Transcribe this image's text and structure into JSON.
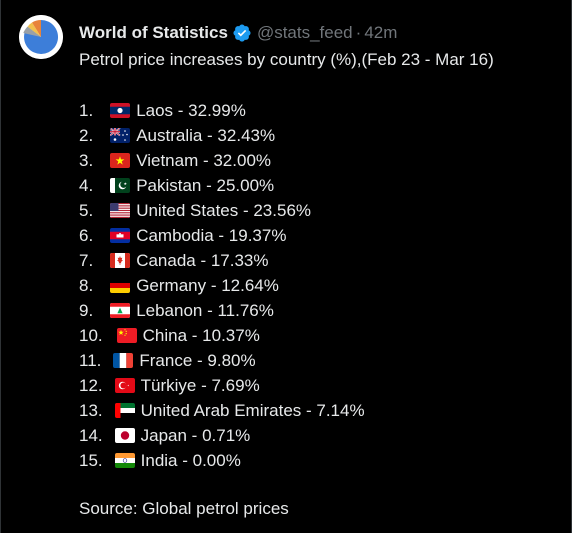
{
  "post": {
    "display_name": "World of Statistics",
    "handle": "@stats_feed",
    "separator": "·",
    "time": "42m",
    "verified_icon": "verified-badge-icon",
    "avatar_icon": "pie-chart-avatar",
    "intro": "Petrol price increases by country (%),(Feb 23 - Mar 16)",
    "source": "Source: Global petrol prices"
  },
  "list": [
    {
      "num": "1.",
      "country": "Laos - 32.99%",
      "flag": "laos-flag-icon"
    },
    {
      "num": "2.",
      "country": "Australia - 32.43%",
      "flag": "australia-flag-icon"
    },
    {
      "num": "3.",
      "country": "Vietnam - 32.00%",
      "flag": "vietnam-flag-icon"
    },
    {
      "num": "4.",
      "country": "Pakistan - 25.00%",
      "flag": "pakistan-flag-icon"
    },
    {
      "num": "5.",
      "country": "United States - 23.56%",
      "flag": "united-states-flag-icon"
    },
    {
      "num": "6.",
      "country": "Cambodia - 19.37%",
      "flag": "cambodia-flag-icon"
    },
    {
      "num": "7.",
      "country": "Canada - 17.33%",
      "flag": "canada-flag-icon"
    },
    {
      "num": "8.",
      "country": "Germany - 12.64%",
      "flag": "germany-flag-icon"
    },
    {
      "num": "9.",
      "country": "Lebanon - 11.76%",
      "flag": "lebanon-flag-icon"
    },
    {
      "num": "10.",
      "country": "China - 10.37%",
      "flag": "china-flag-icon"
    },
    {
      "num": "11.",
      "country": "France - 9.80%",
      "flag": "france-flag-icon"
    },
    {
      "num": "12.",
      "country": "Türkiye - 7.69%",
      "flag": "turkiye-flag-icon"
    },
    {
      "num": "13.",
      "country": "United Arab Emirates - 7.14%",
      "flag": "uae-flag-icon"
    },
    {
      "num": "14.",
      "country": "Japan - 0.71%",
      "flag": "japan-flag-icon"
    },
    {
      "num": "15.",
      "country": "India - 0.00%",
      "flag": "india-flag-icon"
    }
  ],
  "colors": {
    "background": "#000000",
    "text": "#e7e9ea",
    "muted": "#71767b",
    "verified": "#1d9bf0"
  }
}
